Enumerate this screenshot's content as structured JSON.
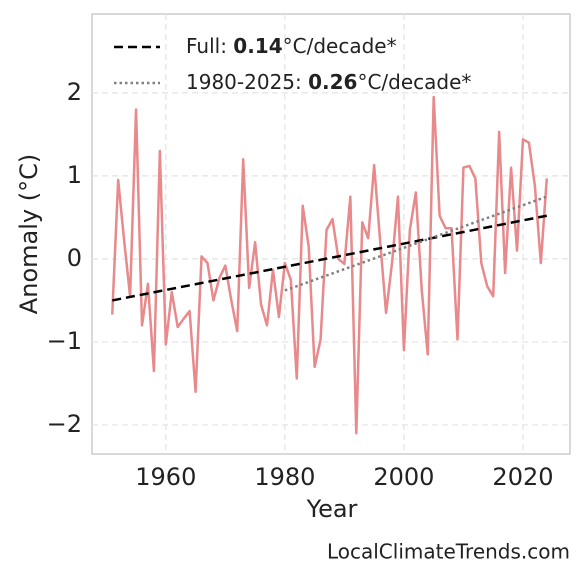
{
  "chart_data": {
    "type": "line",
    "x": [
      1951,
      1952,
      1953,
      1954,
      1955,
      1956,
      1957,
      1958,
      1959,
      1960,
      1961,
      1962,
      1963,
      1964,
      1965,
      1966,
      1967,
      1968,
      1969,
      1970,
      1971,
      1972,
      1973,
      1974,
      1975,
      1976,
      1977,
      1978,
      1979,
      1980,
      1981,
      1982,
      1983,
      1984,
      1985,
      1986,
      1987,
      1988,
      1989,
      1990,
      1991,
      1992,
      1993,
      1994,
      1995,
      1996,
      1997,
      1998,
      1999,
      2000,
      2001,
      2002,
      2003,
      2004,
      2005,
      2006,
      2007,
      2008,
      2009,
      2010,
      2011,
      2012,
      2013,
      2014,
      2015,
      2016,
      2017,
      2018,
      2019,
      2020,
      2021,
      2022,
      2023,
      2024
    ],
    "series": [
      {
        "color": "#e8898b",
        "values": [
          -0.67,
          0.95,
          0.22,
          -0.45,
          1.8,
          -0.8,
          -0.3,
          -1.35,
          1.3,
          -1.03,
          -0.4,
          -0.82,
          -0.72,
          -0.63,
          -1.6,
          0.03,
          -0.05,
          -0.5,
          -0.23,
          -0.08,
          -0.5,
          -0.87,
          1.2,
          -0.35,
          0.2,
          -0.55,
          -0.8,
          -0.13,
          -0.7,
          -0.05,
          -0.25,
          -1.44,
          0.64,
          0.15,
          -1.3,
          -0.97,
          0.35,
          0.48,
          0.0,
          -0.06,
          0.75,
          -2.1,
          0.44,
          0.25,
          1.13,
          0.22,
          -0.65,
          -0.05,
          0.75,
          -1.1,
          0.35,
          0.8,
          -0.38,
          -1.15,
          1.95,
          0.52,
          0.37,
          0.37,
          -0.97,
          1.1,
          1.12,
          0.97,
          -0.05,
          -0.33,
          -0.45,
          1.53,
          -0.17,
          1.1,
          0.1,
          1.44,
          1.4,
          0.88,
          -0.05,
          0.97
        ]
      }
    ],
    "trend_lines": [
      {
        "label": "Full: ",
        "rate": 0.14,
        "unit": "°C/decade*",
        "color": "#000000",
        "dash": "dashed",
        "x": [
          1951,
          2024
        ],
        "values": [
          -0.5,
          0.52
        ]
      },
      {
        "label": "1980-2025: ",
        "rate": 0.26,
        "unit": "°C/decade*",
        "color": "#808080",
        "dash": "dotted",
        "x": [
          1980,
          2024
        ],
        "values": [
          -0.38,
          0.75
        ]
      }
    ],
    "xlabel": "Year",
    "ylabel": "Anomaly (°C)",
    "xlim": [
      1947.6,
      2027.9
    ],
    "ylim": [
      -2.35,
      2.95
    ],
    "xticks": [
      1960,
      1980,
      2000,
      2020
    ],
    "yticks": [
      {
        "value": -2,
        "label": "−2"
      },
      {
        "value": -1,
        "label": "−1"
      },
      0,
      1,
      2
    ],
    "grid": true,
    "legend": "upper left",
    "watermark": "LocalClimateTrends.com"
  }
}
